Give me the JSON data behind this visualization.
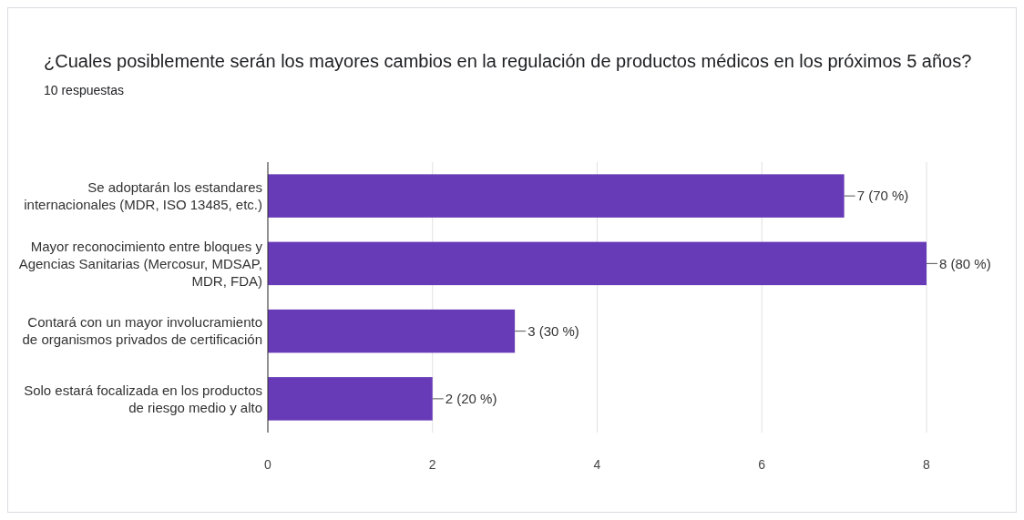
{
  "chart_data": {
    "type": "bar",
    "orientation": "horizontal",
    "title": "¿Cuales posiblemente serán los mayores cambios en la regulación de productos médicos en los próximos 5 años?",
    "subtitle": "10 respuestas",
    "categories": [
      "Se adoptarán los estandares internacionales (MDR, ISO 13485, etc.)",
      "Mayor reconocimiento entre bloques y Agencias Sanitarias (Mercosur, MDSAP, MDR, FDA)",
      "Contará con un mayor involucramiento de organismos privados de certificación",
      "Solo estará focalizada en los productos de riesgo medio y alto"
    ],
    "values": [
      7,
      8,
      3,
      2
    ],
    "color": "#673ab7",
    "value_labels": [
      "7 (70 %)",
      "8 (80 %)",
      "3 (30 %)",
      "2 (20 %)"
    ],
    "xlim": [
      0,
      8
    ],
    "xticks": [
      0,
      2,
      4,
      6,
      8
    ],
    "grid": "x"
  }
}
